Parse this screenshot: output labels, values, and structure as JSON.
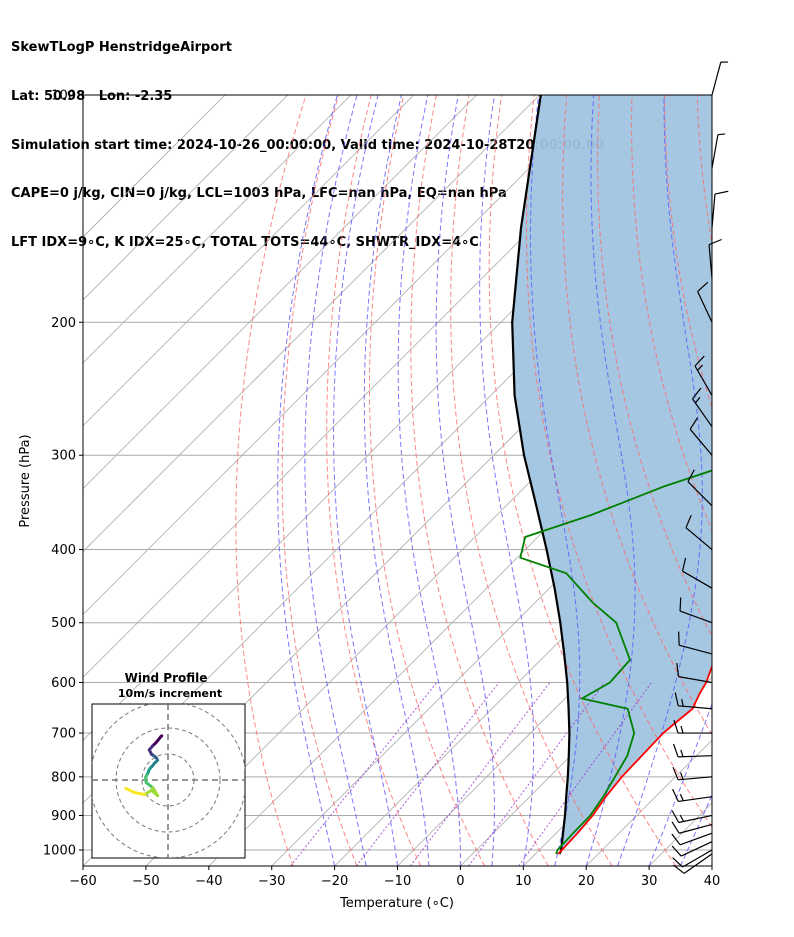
{
  "header": {
    "line1": "SkewTLogP HenstridgeAirport",
    "line2": "Lat: 50.98   Lon: -2.35",
    "line3": "Simulation start time: 2024-10-26_00:00:00, Valid time: 2024-10-28T20:00:00.00",
    "line4": "CAPE=0 j/kg, CIN=0 j/kg, LCL=1003 hPa, LFC=nan hPa, EQ=nan hPa",
    "line5": "LFT IDX=9∘C, K IDX=25∘C, TOTAL TOTS=44∘C, SHWTR_IDX=4∘C"
  },
  "chart_data": {
    "type": "line",
    "xlabel": "Temperature (∘C)",
    "ylabel": "Pressure (hPa)",
    "xlim": [
      -60,
      40
    ],
    "ylim": [
      1050,
      100
    ],
    "y_scale": "log",
    "x_ticks": [
      -60,
      -50,
      -40,
      -30,
      -20,
      -10,
      0,
      10,
      20,
      30,
      40
    ],
    "y_ticks": [
      100,
      200,
      300,
      400,
      500,
      600,
      700,
      800,
      900,
      1000
    ],
    "grid": true,
    "colors": {
      "temperature": "#ff0000",
      "dewpoint": "#008000",
      "parcel": "#000000",
      "shade": "#a0c4e0",
      "dry_adiabats": "#ff6666",
      "moist_adiabats": "#5555ff",
      "mixing_ratio": "#9933cc",
      "isotherms": "#aaaaaa"
    },
    "series": [
      {
        "id": "temperature",
        "points": [
          [
            1012,
            13.6
          ],
          [
            1000,
            13.6
          ],
          [
            950,
            13.4
          ],
          [
            900,
            13.0
          ],
          [
            850,
            12.1
          ],
          [
            800,
            11.5
          ],
          [
            750,
            11.3
          ],
          [
            700,
            11.1
          ],
          [
            680,
            11.4
          ],
          [
            650,
            11.9
          ],
          [
            620,
            10.6
          ],
          [
            600,
            9.9
          ],
          [
            550,
            7.0
          ],
          [
            500,
            4.0
          ],
          [
            450,
            0.2
          ],
          [
            400,
            -4.1
          ],
          [
            350,
            -9.0
          ],
          [
            300,
            -14.8
          ],
          [
            275,
            -18.0
          ],
          [
            250,
            -21.6
          ],
          [
            230,
            -24.4
          ],
          [
            210,
            -26.0
          ],
          [
            195,
            -28.9
          ],
          [
            180,
            -32.0
          ],
          [
            165,
            -35.0
          ],
          [
            150,
            -38.8
          ],
          [
            140,
            -42.0
          ],
          [
            130,
            -44.4
          ],
          [
            120,
            -47.1
          ],
          [
            110,
            -49.9
          ],
          [
            100,
            -53.7
          ]
        ]
      },
      {
        "id": "dewpoint",
        "points": [
          [
            1012,
            13.3
          ],
          [
            1000,
            12.9
          ],
          [
            950,
            12.7
          ],
          [
            900,
            12.6
          ],
          [
            850,
            11.7
          ],
          [
            800,
            10.4
          ],
          [
            750,
            9.0
          ],
          [
            700,
            6.5
          ],
          [
            650,
            1.6
          ],
          [
            630,
            -7.3
          ],
          [
            600,
            -5.4
          ],
          [
            560,
            -5.8
          ],
          [
            500,
            -13.9
          ],
          [
            470,
            -20.9
          ],
          [
            430,
            -29.7
          ],
          [
            410,
            -39.5
          ],
          [
            385,
            -42.0
          ],
          [
            360,
            -35.0
          ],
          [
            330,
            -28.0
          ],
          [
            305,
            -19.7
          ],
          [
            290,
            -20.0
          ],
          [
            270,
            -24.3
          ],
          [
            245,
            -29.0
          ],
          [
            230,
            -31.8
          ],
          [
            210,
            -36.4
          ],
          [
            200,
            -34.4
          ],
          [
            185,
            -33.6
          ],
          [
            170,
            -34.8
          ],
          [
            160,
            -36.3
          ],
          [
            150,
            -38.7
          ],
          [
            140,
            -43.4
          ],
          [
            130,
            -48.9
          ],
          [
            120,
            -52.0
          ],
          [
            110,
            -54.5
          ],
          [
            100,
            -58.7
          ]
        ]
      },
      {
        "id": "parcel",
        "points": [
          [
            1012,
            13.8
          ],
          [
            1003,
            13.6
          ],
          [
            950,
            11.1
          ],
          [
            900,
            8.6
          ],
          [
            850,
            5.8
          ],
          [
            800,
            2.9
          ],
          [
            750,
            -0.3
          ],
          [
            700,
            -3.8
          ],
          [
            650,
            -7.8
          ],
          [
            600,
            -12.2
          ],
          [
            550,
            -17.2
          ],
          [
            500,
            -22.8
          ],
          [
            450,
            -29.2
          ],
          [
            400,
            -36.6
          ],
          [
            350,
            -45.2
          ],
          [
            300,
            -55.2
          ],
          [
            250,
            -66.2
          ],
          [
            200,
            -78.2
          ],
          [
            150,
            -91.8
          ],
          [
            100,
            -109.8
          ]
        ]
      }
    ],
    "wind_barbs": [
      [
        1012,
        8,
        235
      ],
      [
        1000,
        9,
        240
      ],
      [
        975,
        10,
        245
      ],
      [
        950,
        11,
        250
      ],
      [
        925,
        12,
        255
      ],
      [
        900,
        13,
        258
      ],
      [
        850,
        14,
        262
      ],
      [
        800,
        15,
        265
      ],
      [
        750,
        16,
        268
      ],
      [
        700,
        15,
        270
      ],
      [
        650,
        13,
        275
      ],
      [
        600,
        11,
        280
      ],
      [
        550,
        10,
        285
      ],
      [
        500,
        9,
        290
      ],
      [
        450,
        9,
        300
      ],
      [
        400,
        10,
        310
      ],
      [
        350,
        11,
        315
      ],
      [
        300,
        12,
        320
      ],
      [
        275,
        13,
        325
      ],
      [
        250,
        14,
        330
      ],
      [
        200,
        12,
        335
      ],
      [
        175,
        10,
        355
      ],
      [
        150,
        8,
        5
      ],
      [
        125,
        6,
        10
      ],
      [
        100,
        5,
        15
      ]
    ],
    "inset": {
      "title": "Wind Profile",
      "subtitle": "10m/s increment",
      "rings": [
        10,
        20,
        30
      ],
      "hodograph": [
        [
          -1.2,
          -8.5
        ],
        [
          -1.4,
          -8.3
        ],
        [
          -1.8,
          -7.8
        ],
        [
          -2.3,
          -7.2
        ],
        [
          -3.0,
          -6.5
        ],
        [
          -3.6,
          -5.8
        ],
        [
          -3.2,
          -5.0
        ],
        [
          -2.8,
          -4.7
        ],
        [
          -2.5,
          -4.5
        ],
        [
          -2.2,
          -4.2
        ],
        [
          -2.0,
          -3.8
        ],
        [
          -2.6,
          -3.2
        ],
        [
          -3.0,
          -2.7
        ],
        [
          -3.4,
          -2.3
        ],
        [
          -3.6,
          -2.0
        ],
        [
          -3.8,
          -1.5
        ],
        [
          -4.1,
          -0.9
        ],
        [
          -4.3,
          -0.5
        ],
        [
          -4.2,
          0.5
        ],
        [
          -2.9,
          1.5
        ],
        [
          -2.0,
          3.0
        ],
        [
          -3.2,
          2.0
        ],
        [
          -4.5,
          2.8
        ],
        [
          -6.5,
          2.4
        ],
        [
          -8.1,
          1.6
        ]
      ]
    }
  }
}
